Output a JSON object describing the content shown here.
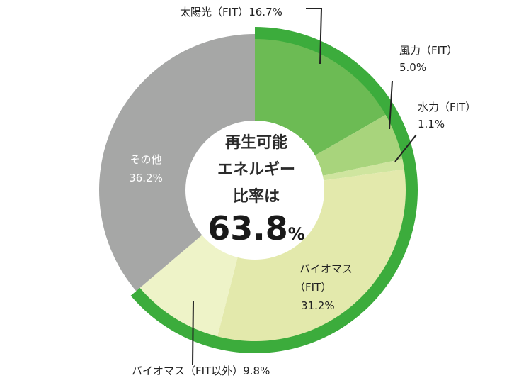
{
  "chart_data": {
    "type": "pie",
    "title": "",
    "center": {
      "line1": "再生可能",
      "line2": "エネルギー",
      "line3": "比率は",
      "value": "63.8",
      "unit": "%"
    },
    "slices": [
      {
        "label": "太陽光（FIT）",
        "value_text": "16.7%",
        "value": 16.7,
        "color": "#6cbb54"
      },
      {
        "label": "風力（FIT）",
        "value_text": "5.0%",
        "value": 5.0,
        "color": "#a8d47c"
      },
      {
        "label": "水力（FIT）",
        "value_text": "1.1%",
        "value": 1.1,
        "color": "#cfe59f"
      },
      {
        "label_line1": "バイオマス",
        "label_line2": "（FIT）",
        "value_text": "31.2%",
        "value": 31.2,
        "color": "#e3e9ac"
      },
      {
        "label": "バイオマス（FIT以外）",
        "value_text": "9.8%",
        "value": 9.8,
        "color": "#eef3c8"
      },
      {
        "label": "その他",
        "value_text": "36.2%",
        "value": 36.2,
        "color": "#a6a7a6"
      }
    ],
    "renewable_arc": {
      "value": 63.8,
      "color": "#3cac3c"
    }
  }
}
